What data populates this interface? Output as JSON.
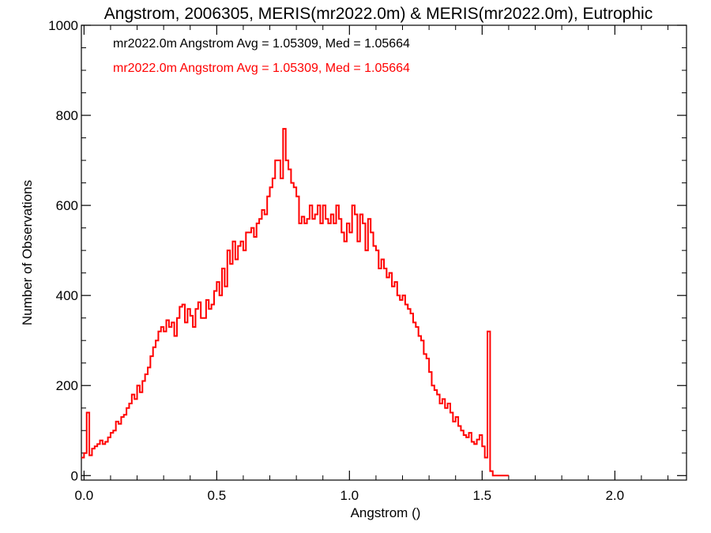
{
  "chart_data": {
    "type": "histogram",
    "title": "Angstrom, 2006305, MERIS(mr2022.0m) & MERIS(mr2022.0m), Eutrophic",
    "xlabel": "Angstrom ()",
    "ylabel": "Number of Observations",
    "xlim": [
      -0.01,
      2.27
    ],
    "ylim": [
      -10,
      1000
    ],
    "x_ticks": [
      0.0,
      0.5,
      1.0,
      1.5,
      2.0
    ],
    "x_tick_labels": [
      "0.0",
      "0.5",
      "1.0",
      "1.5",
      "2.0"
    ],
    "y_ticks": [
      0,
      200,
      400,
      600,
      800,
      1000
    ],
    "y_tick_labels": [
      "0",
      "200",
      "400",
      "600",
      "800",
      "1000"
    ],
    "legend": [
      {
        "text": "mr2022.0m Angstrom Avg = 1.05309, Med = 1.05664",
        "color": "#000000"
      },
      {
        "text": "mr2022.0m Angstrom Avg = 1.05309, Med = 1.05664",
        "color": "#ff0000"
      }
    ],
    "series": [
      {
        "color": "#ff0000",
        "bin_width": 0.01,
        "x_start": -0.01,
        "values": [
          40,
          50,
          140,
          45,
          60,
          65,
          70,
          78,
          70,
          75,
          85,
          95,
          100,
          120,
          115,
          130,
          135,
          150,
          160,
          180,
          170,
          200,
          185,
          210,
          225,
          240,
          265,
          285,
          300,
          320,
          330,
          320,
          345,
          330,
          340,
          310,
          350,
          375,
          380,
          340,
          370,
          355,
          330,
          370,
          385,
          350,
          350,
          390,
          370,
          380,
          410,
          430,
          400,
          460,
          420,
          500,
          470,
          520,
          480,
          510,
          520,
          500,
          540,
          540,
          550,
          530,
          560,
          570,
          590,
          580,
          620,
          640,
          660,
          700,
          700,
          660,
          770,
          700,
          680,
          650,
          640,
          620,
          560,
          575,
          560,
          570,
          600,
          570,
          580,
          600,
          560,
          600,
          570,
          560,
          580,
          560,
          600,
          570,
          540,
          520,
          560,
          540,
          600,
          580,
          520,
          580,
          560,
          500,
          570,
          540,
          510,
          500,
          460,
          480,
          460,
          440,
          450,
          420,
          430,
          400,
          390,
          400,
          380,
          370,
          360,
          340,
          330,
          310,
          300,
          270,
          260,
          230,
          200,
          190,
          180,
          160,
          170,
          150,
          160,
          140,
          120,
          130,
          110,
          100,
          90,
          85,
          95,
          75,
          70,
          80,
          90,
          65,
          40,
          320,
          10,
          0,
          0,
          0,
          0,
          0,
          0
        ]
      }
    ]
  }
}
